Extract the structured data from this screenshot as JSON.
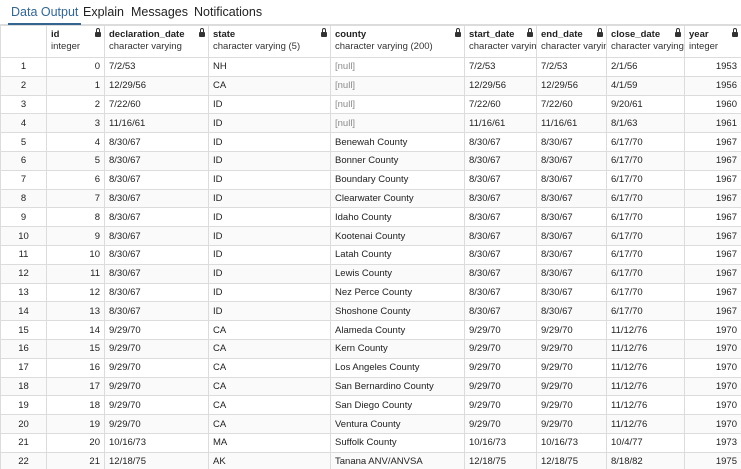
{
  "tabs": [
    {
      "label": "Data Output",
      "active": true
    },
    {
      "label": "Explain",
      "active": false
    },
    {
      "label": "Messages",
      "active": false
    },
    {
      "label": "Notifications",
      "active": false
    }
  ],
  "columns": [
    {
      "name": "id",
      "type": "integer"
    },
    {
      "name": "declaration_date",
      "type": "character varying"
    },
    {
      "name": "state",
      "type": "character varying (5)"
    },
    {
      "name": "county",
      "type": "character varying (200)"
    },
    {
      "name": "start_date",
      "type": "character varying"
    },
    {
      "name": "end_date",
      "type": "character varying"
    },
    {
      "name": "close_date",
      "type": "character varying"
    },
    {
      "name": "year",
      "type": "integer"
    }
  ],
  "rows": [
    [
      "1",
      "0",
      "7/2/53",
      "NH",
      "[null]",
      "7/2/53",
      "7/2/53",
      "2/1/56",
      "1953"
    ],
    [
      "2",
      "1",
      "12/29/56",
      "CA",
      "[null]",
      "12/29/56",
      "12/29/56",
      "4/1/59",
      "1956"
    ],
    [
      "3",
      "2",
      "7/22/60",
      "ID",
      "[null]",
      "7/22/60",
      "7/22/60",
      "9/20/61",
      "1960"
    ],
    [
      "4",
      "3",
      "11/16/61",
      "ID",
      "[null]",
      "11/16/61",
      "11/16/61",
      "8/1/63",
      "1961"
    ],
    [
      "5",
      "4",
      "8/30/67",
      "ID",
      "Benewah County",
      "8/30/67",
      "8/30/67",
      "6/17/70",
      "1967"
    ],
    [
      "6",
      "5",
      "8/30/67",
      "ID",
      "Bonner County",
      "8/30/67",
      "8/30/67",
      "6/17/70",
      "1967"
    ],
    [
      "7",
      "6",
      "8/30/67",
      "ID",
      "Boundary County",
      "8/30/67",
      "8/30/67",
      "6/17/70",
      "1967"
    ],
    [
      "8",
      "7",
      "8/30/67",
      "ID",
      "Clearwater County",
      "8/30/67",
      "8/30/67",
      "6/17/70",
      "1967"
    ],
    [
      "9",
      "8",
      "8/30/67",
      "ID",
      "Idaho County",
      "8/30/67",
      "8/30/67",
      "6/17/70",
      "1967"
    ],
    [
      "10",
      "9",
      "8/30/67",
      "ID",
      "Kootenai County",
      "8/30/67",
      "8/30/67",
      "6/17/70",
      "1967"
    ],
    [
      "11",
      "10",
      "8/30/67",
      "ID",
      "Latah County",
      "8/30/67",
      "8/30/67",
      "6/17/70",
      "1967"
    ],
    [
      "12",
      "11",
      "8/30/67",
      "ID",
      "Lewis County",
      "8/30/67",
      "8/30/67",
      "6/17/70",
      "1967"
    ],
    [
      "13",
      "12",
      "8/30/67",
      "ID",
      "Nez Perce County",
      "8/30/67",
      "8/30/67",
      "6/17/70",
      "1967"
    ],
    [
      "14",
      "13",
      "8/30/67",
      "ID",
      "Shoshone County",
      "8/30/67",
      "8/30/67",
      "6/17/70",
      "1967"
    ],
    [
      "15",
      "14",
      "9/29/70",
      "CA",
      "Alameda County",
      "9/29/70",
      "9/29/70",
      "11/12/76",
      "1970"
    ],
    [
      "16",
      "15",
      "9/29/70",
      "CA",
      "Kern County",
      "9/29/70",
      "9/29/70",
      "11/12/76",
      "1970"
    ],
    [
      "17",
      "16",
      "9/29/70",
      "CA",
      "Los Angeles County",
      "9/29/70",
      "9/29/70",
      "11/12/76",
      "1970"
    ],
    [
      "18",
      "17",
      "9/29/70",
      "CA",
      "San Bernardino County",
      "9/29/70",
      "9/29/70",
      "11/12/76",
      "1970"
    ],
    [
      "19",
      "18",
      "9/29/70",
      "CA",
      "San Diego County",
      "9/29/70",
      "9/29/70",
      "11/12/76",
      "1970"
    ],
    [
      "20",
      "19",
      "9/29/70",
      "CA",
      "Ventura County",
      "9/29/70",
      "9/29/70",
      "11/12/76",
      "1970"
    ],
    [
      "21",
      "20",
      "10/16/73",
      "MA",
      "Suffolk County",
      "10/16/73",
      "10/16/73",
      "10/4/77",
      "1973"
    ],
    [
      "22",
      "21",
      "12/18/75",
      "AK",
      "Tanana ANV/ANVSA",
      "12/18/75",
      "12/18/75",
      "8/18/82",
      "1975"
    ]
  ]
}
